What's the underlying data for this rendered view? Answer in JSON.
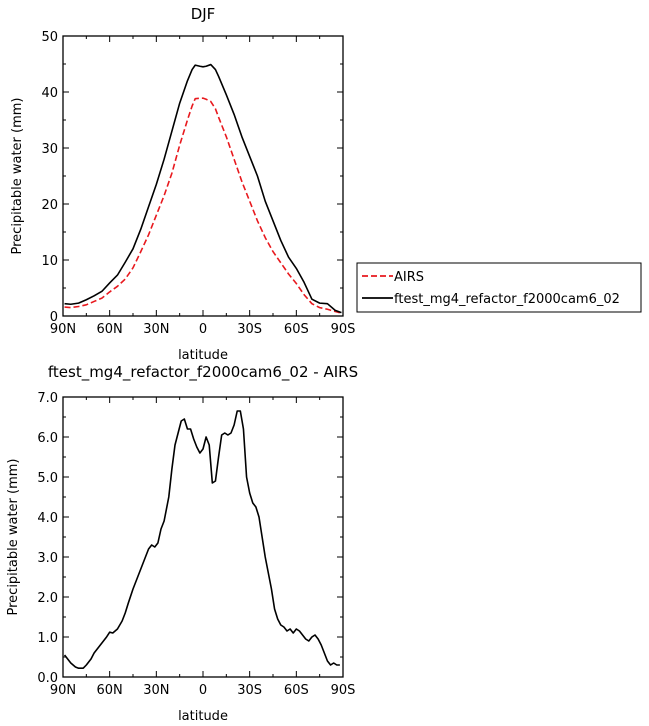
{
  "chart_data": [
    {
      "type": "line",
      "title": "DJF",
      "xlabel": "latitude",
      "ylabel": "Precipitable water (mm)",
      "xlim": [
        90,
        -90
      ],
      "ylim": [
        0,
        50
      ],
      "x_ticks": [
        90,
        60,
        30,
        0,
        -30,
        -60,
        -90
      ],
      "x_tick_labels": [
        "90N",
        "60N",
        "30N",
        "0",
        "30S",
        "60S",
        "90S"
      ],
      "y_ticks": [
        0,
        10,
        20,
        30,
        40,
        50
      ],
      "y_tick_labels": [
        "0",
        "10",
        "20",
        "30",
        "40",
        "50"
      ],
      "grid": false,
      "legend_position": "right-outside",
      "series": [
        {
          "name": "AIRS",
          "color": "#e8191e",
          "dash": "dashed",
          "x": [
            89,
            85,
            80,
            75,
            70,
            65,
            60,
            55,
            50,
            45,
            40,
            35,
            30,
            25,
            20,
            15,
            10,
            7,
            5,
            2,
            0,
            -2,
            -5,
            -8,
            -10,
            -15,
            -20,
            -25,
            -30,
            -35,
            -40,
            -45,
            -50,
            -55,
            -60,
            -65,
            -70,
            -75,
            -80,
            -85,
            -89
          ],
          "y": [
            1.6,
            1.5,
            1.7,
            2.0,
            2.6,
            3.2,
            4.3,
            5.3,
            6.6,
            8.6,
            11.5,
            14.5,
            18.0,
            21.5,
            25.5,
            30.5,
            35.0,
            37.5,
            38.8,
            38.9,
            38.9,
            38.7,
            38.3,
            37.0,
            35.5,
            32.0,
            28.0,
            24.0,
            20.5,
            17.0,
            14.0,
            11.5,
            9.5,
            7.5,
            5.8,
            3.8,
            2.2,
            1.5,
            1.2,
            0.8,
            0.5
          ]
        },
        {
          "name": "ftest_mg4_refactor_f2000cam6_02",
          "color": "#000000",
          "dash": "solid",
          "x": [
            89,
            85,
            80,
            75,
            70,
            65,
            60,
            55,
            50,
            45,
            40,
            35,
            30,
            25,
            20,
            15,
            10,
            7,
            5,
            2,
            0,
            -2,
            -5,
            -8,
            -10,
            -15,
            -20,
            -25,
            -30,
            -35,
            -40,
            -45,
            -50,
            -55,
            -60,
            -65,
            -70,
            -75,
            -80,
            -85,
            -89
          ],
          "y": [
            2.2,
            2.1,
            2.3,
            2.9,
            3.6,
            4.4,
            5.9,
            7.3,
            9.6,
            12.0,
            15.5,
            19.5,
            23.5,
            28.0,
            33.0,
            38.0,
            42.0,
            44.0,
            44.8,
            44.6,
            44.5,
            44.6,
            44.9,
            44.0,
            42.8,
            39.5,
            36.0,
            32.0,
            28.5,
            25.0,
            20.5,
            17.0,
            13.5,
            10.5,
            8.5,
            6.0,
            3.0,
            2.3,
            2.2,
            1.0,
            0.6
          ]
        }
      ]
    },
    {
      "type": "line",
      "title": "ftest_mg4_refactor_f2000cam6_02 - AIRS",
      "xlabel": "latitude",
      "ylabel": "Precipitable water (mm)",
      "xlim": [
        90,
        -90
      ],
      "ylim": [
        0,
        7
      ],
      "x_ticks": [
        90,
        60,
        30,
        0,
        -30,
        -60,
        -90
      ],
      "x_tick_labels": [
        "90N",
        "60N",
        "30N",
        "0",
        "30S",
        "60S",
        "90S"
      ],
      "y_ticks": [
        0,
        1,
        2,
        3,
        4,
        5,
        6,
        7
      ],
      "y_tick_labels": [
        "0.0",
        "1.0",
        "2.0",
        "3.0",
        "4.0",
        "5.0",
        "6.0",
        "7.0"
      ],
      "grid": false,
      "series": [
        {
          "color": "#000000",
          "dash": "solid",
          "x": [
            89,
            85,
            82,
            80,
            77,
            75,
            72,
            70,
            68,
            65,
            62,
            60,
            58,
            55,
            52,
            50,
            48,
            45,
            42,
            40,
            38,
            35,
            33,
            31,
            29,
            27,
            25,
            22,
            20,
            18,
            16,
            14,
            12,
            10,
            8,
            6,
            4,
            2,
            0,
            -2,
            -4,
            -6,
            -8,
            -10,
            -12,
            -14,
            -16,
            -18,
            -20,
            -22,
            -24,
            -26,
            -28,
            -30,
            -32,
            -34,
            -36,
            -38,
            -40,
            -42,
            -44,
            -46,
            -48,
            -50,
            -52,
            -54,
            -56,
            -58,
            -60,
            -62,
            -64,
            -66,
            -68,
            -70,
            -72,
            -74,
            -76,
            -78,
            -80,
            -82,
            -84,
            -86,
            -88
          ],
          "y": [
            0.55,
            0.35,
            0.25,
            0.22,
            0.22,
            0.3,
            0.45,
            0.6,
            0.7,
            0.85,
            1.0,
            1.12,
            1.1,
            1.2,
            1.4,
            1.6,
            1.85,
            2.2,
            2.5,
            2.7,
            2.9,
            3.2,
            3.3,
            3.25,
            3.35,
            3.7,
            3.9,
            4.5,
            5.2,
            5.8,
            6.1,
            6.4,
            6.45,
            6.2,
            6.2,
            5.95,
            5.75,
            5.6,
            5.7,
            6.0,
            5.8,
            4.85,
            4.9,
            5.5,
            6.05,
            6.1,
            6.05,
            6.1,
            6.3,
            6.65,
            6.65,
            6.2,
            5.0,
            4.6,
            4.35,
            4.25,
            4.0,
            3.5,
            3.0,
            2.6,
            2.2,
            1.7,
            1.45,
            1.3,
            1.25,
            1.15,
            1.2,
            1.1,
            1.2,
            1.15,
            1.05,
            0.95,
            0.9,
            1.0,
            1.05,
            0.95,
            0.8,
            0.6,
            0.4,
            0.3,
            0.35,
            0.3,
            0.3
          ]
        }
      ]
    }
  ]
}
